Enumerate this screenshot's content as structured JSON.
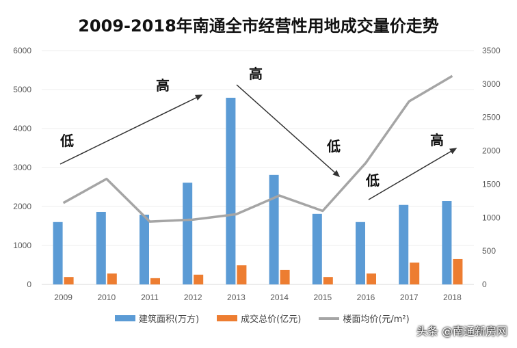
{
  "chart_data": {
    "type": "bar",
    "title": "2009-2018年南通全市经营性用地成交量价走势",
    "categories": [
      "2009",
      "2010",
      "2011",
      "2012",
      "2013",
      "2014",
      "2015",
      "2016",
      "2017",
      "2018"
    ],
    "series": [
      {
        "name": "建筑面积(万方)",
        "type": "bar",
        "axis": "left",
        "color": "#5b9bd5",
        "values": [
          1600,
          1860,
          1790,
          2610,
          4790,
          2810,
          1810,
          1600,
          2040,
          2140
        ]
      },
      {
        "name": "成交总价(亿元)",
        "type": "bar",
        "axis": "left",
        "color": "#ed7d31",
        "values": [
          190,
          280,
          160,
          250,
          490,
          370,
          190,
          280,
          560,
          650
        ]
      },
      {
        "name": "楼面均价(元/m²)",
        "type": "line",
        "axis": "right",
        "color": "#a5a5a5",
        "values": [
          1220,
          1580,
          940,
          970,
          1050,
          1330,
          1100,
          1820,
          2740,
          3120
        ]
      }
    ],
    "y_left": {
      "range": [
        0,
        6000
      ],
      "ticks": [
        "0",
        "1000",
        "2000",
        "3000",
        "4000",
        "5000",
        "6000"
      ]
    },
    "y_right": {
      "range": [
        0,
        3500
      ],
      "ticks": [
        "0",
        "500",
        "1000",
        "1500",
        "2000",
        "2500",
        "3000",
        "3500"
      ]
    },
    "grid": true,
    "legend": "bottom",
    "annotations": [
      {
        "text": "低"
      },
      {
        "text": "高"
      },
      {
        "text": "高"
      },
      {
        "text": "低"
      },
      {
        "text": "低"
      },
      {
        "text": "高"
      }
    ]
  },
  "watermark": "头条 @南通新房网"
}
